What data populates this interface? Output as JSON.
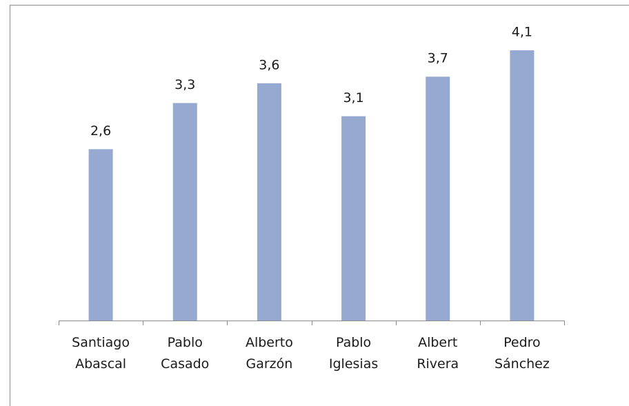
{
  "chart_data": {
    "type": "bar",
    "categories": [
      "Santiago Abascal",
      "Pablo Casado",
      "Alberto Garzón",
      "Pablo Iglesias",
      "Albert Rivera",
      "Pedro Sánchez"
    ],
    "values": [
      2.6,
      3.3,
      3.6,
      3.1,
      3.7,
      4.1
    ],
    "value_labels": [
      "2,6",
      "3,3",
      "3,6",
      "3,1",
      "3,7",
      "4,1"
    ],
    "color": "#95a9d1"
  }
}
